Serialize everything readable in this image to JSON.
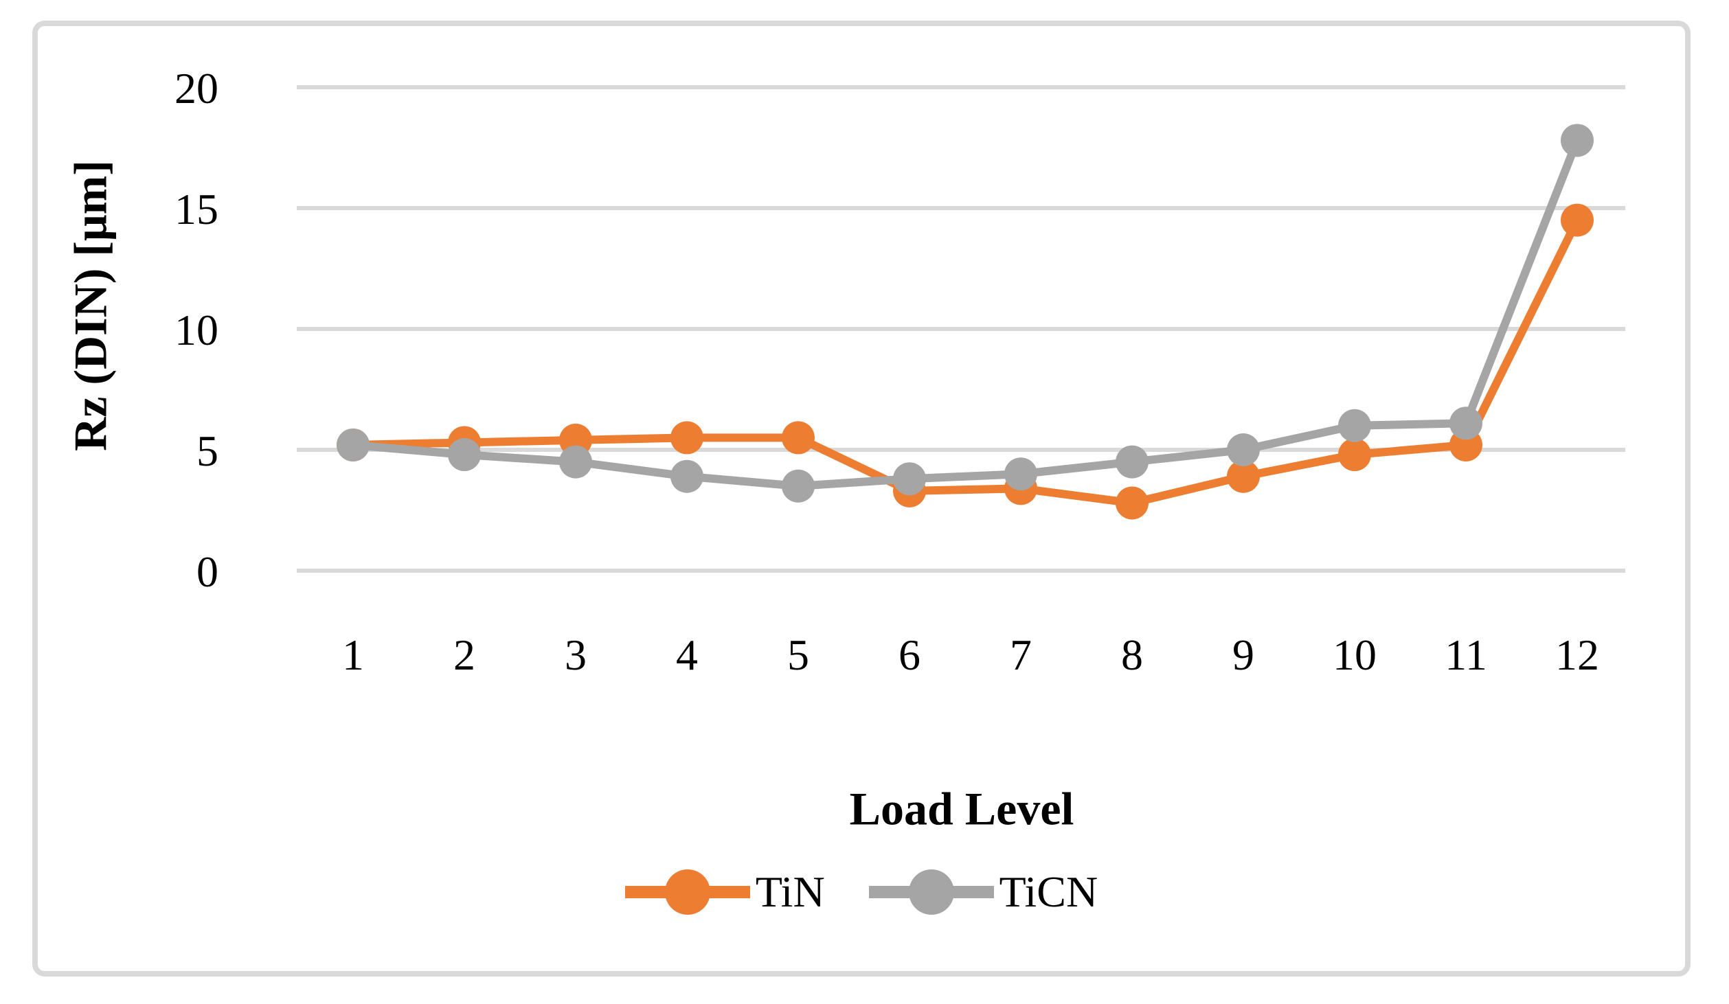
{
  "figure": {
    "frame_color": "#D9D9D9",
    "background_color": "#FFFFFF",
    "text_color": "#000000"
  },
  "chart_data": {
    "type": "line",
    "title": "",
    "xlabel": "Load Level",
    "ylabel": "Rz (DIN) [μm]",
    "categories": [
      "1",
      "2",
      "3",
      "4",
      "5",
      "6",
      "7",
      "8",
      "9",
      "10",
      "11",
      "12"
    ],
    "series": [
      {
        "name": "TiN",
        "color": "#ED7D31",
        "values": [
          5.2,
          5.3,
          5.4,
          5.5,
          5.5,
          3.3,
          3.4,
          2.8,
          3.9,
          4.8,
          5.2,
          14.5
        ]
      },
      {
        "name": "TiCN",
        "color": "#A5A5A5",
        "values": [
          5.2,
          4.8,
          4.5,
          3.9,
          3.5,
          3.8,
          4.0,
          4.5,
          5.0,
          6.0,
          6.1,
          17.8
        ]
      }
    ],
    "ylim": [
      0,
      20
    ],
    "yticks": [
      0,
      5,
      10,
      15,
      20
    ],
    "grid": true,
    "gridline_color": "#D9D9D9",
    "legend_position": "bottom-center"
  }
}
